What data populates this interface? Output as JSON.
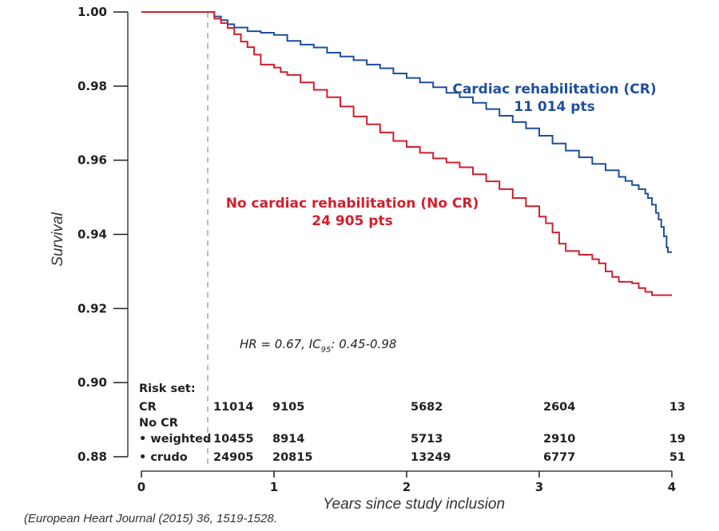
{
  "chart_data": {
    "type": "line",
    "subtype": "kaplan-meier-step",
    "title": "",
    "xlabel": "Years since study inclusion",
    "ylabel": "Survival",
    "xlim": [
      0,
      4
    ],
    "ylim": [
      0.88,
      1.0
    ],
    "x_ticks": [
      "0",
      "1",
      "2",
      "3",
      "4"
    ],
    "y_ticks": [
      "1.00",
      "0.98",
      "0.96",
      "0.94",
      "0.92",
      "0.90",
      "0.88"
    ],
    "grid": false,
    "reference_line": {
      "x": 0.5,
      "style": "dashed"
    },
    "series": [
      {
        "name": "Cardiac rehabilitation (CR)",
        "label_line1": "Cardiac rehabilitation (CR)",
        "label_line2": "11 014 pts",
        "color": "#1f4e9c",
        "points": [
          [
            0,
            1.0
          ],
          [
            0.5,
            1.0
          ],
          [
            0.55,
            0.9988
          ],
          [
            0.6,
            0.9978
          ],
          [
            0.65,
            0.9967
          ],
          [
            0.7,
            0.9958
          ],
          [
            0.8,
            0.9948
          ],
          [
            0.9,
            0.9944
          ],
          [
            1.0,
            0.9938
          ],
          [
            1.1,
            0.9922
          ],
          [
            1.2,
            0.9912
          ],
          [
            1.3,
            0.9904
          ],
          [
            1.4,
            0.989
          ],
          [
            1.5,
            0.988
          ],
          [
            1.6,
            0.987
          ],
          [
            1.7,
            0.9858
          ],
          [
            1.8,
            0.9848
          ],
          [
            1.9,
            0.9834
          ],
          [
            2.0,
            0.9822
          ],
          [
            2.1,
            0.981
          ],
          [
            2.2,
            0.9797
          ],
          [
            2.3,
            0.9782
          ],
          [
            2.4,
            0.977
          ],
          [
            2.5,
            0.9755
          ],
          [
            2.6,
            0.9738
          ],
          [
            2.7,
            0.972
          ],
          [
            2.8,
            0.9703
          ],
          [
            2.9,
            0.9686
          ],
          [
            3.0,
            0.9666
          ],
          [
            3.1,
            0.9645
          ],
          [
            3.2,
            0.9626
          ],
          [
            3.3,
            0.9608
          ],
          [
            3.4,
            0.959
          ],
          [
            3.5,
            0.9573
          ],
          [
            3.6,
            0.9555
          ],
          [
            3.65,
            0.9544
          ],
          [
            3.7,
            0.9533
          ],
          [
            3.75,
            0.9522
          ],
          [
            3.8,
            0.951
          ],
          [
            3.82,
            0.9498
          ],
          [
            3.85,
            0.948
          ],
          [
            3.88,
            0.9458
          ],
          [
            3.9,
            0.944
          ],
          [
            3.92,
            0.942
          ],
          [
            3.94,
            0.9395
          ],
          [
            3.96,
            0.9365
          ],
          [
            3.97,
            0.9352
          ],
          [
            4.0,
            0.9352
          ]
        ]
      },
      {
        "name": "No cardiac rehabilitation (No CR)",
        "label_line1": "No cardiac rehabilitation (No CR)",
        "label_line2": "24 905 pts",
        "color": "#d0202e",
        "points": [
          [
            0,
            1.0
          ],
          [
            0.5,
            1.0
          ],
          [
            0.55,
            0.9982
          ],
          [
            0.6,
            0.997
          ],
          [
            0.65,
            0.9957
          ],
          [
            0.7,
            0.994
          ],
          [
            0.75,
            0.992
          ],
          [
            0.8,
            0.9905
          ],
          [
            0.85,
            0.9885
          ],
          [
            0.9,
            0.9858
          ],
          [
            1.0,
            0.985
          ],
          [
            1.05,
            0.9838
          ],
          [
            1.1,
            0.983
          ],
          [
            1.2,
            0.981
          ],
          [
            1.3,
            0.979
          ],
          [
            1.4,
            0.977
          ],
          [
            1.5,
            0.9745
          ],
          [
            1.6,
            0.9718
          ],
          [
            1.7,
            0.9697
          ],
          [
            1.8,
            0.9675
          ],
          [
            1.9,
            0.9652
          ],
          [
            2.0,
            0.9636
          ],
          [
            2.1,
            0.962
          ],
          [
            2.2,
            0.9605
          ],
          [
            2.3,
            0.9594
          ],
          [
            2.4,
            0.9581
          ],
          [
            2.5,
            0.9562
          ],
          [
            2.6,
            0.9543
          ],
          [
            2.7,
            0.9522
          ],
          [
            2.8,
            0.9498
          ],
          [
            2.9,
            0.9476
          ],
          [
            3.0,
            0.9448
          ],
          [
            3.05,
            0.943
          ],
          [
            3.1,
            0.9405
          ],
          [
            3.15,
            0.9375
          ],
          [
            3.2,
            0.9355
          ],
          [
            3.3,
            0.9345
          ],
          [
            3.4,
            0.9333
          ],
          [
            3.45,
            0.9322
          ],
          [
            3.5,
            0.93
          ],
          [
            3.55,
            0.9285
          ],
          [
            3.6,
            0.9272
          ],
          [
            3.7,
            0.9268
          ],
          [
            3.75,
            0.9255
          ],
          [
            3.8,
            0.9245
          ],
          [
            3.85,
            0.9236
          ],
          [
            4.0,
            0.9236
          ]
        ]
      }
    ],
    "annotation": {
      "prefix": "HR = 0.67, IC",
      "subscript": "95",
      "suffix": ": 0.45-0.98"
    },
    "risk_table": {
      "title": "Risk set:",
      "timepoints": [
        0.5,
        1,
        2,
        3,
        4
      ],
      "rows": [
        {
          "label": "CR",
          "values": [
            "11014",
            "9105",
            "5682",
            "2604",
            "13"
          ]
        },
        {
          "label": "No CR",
          "values": []
        },
        {
          "label": "• weighted",
          "values": [
            "10455",
            "8914",
            "5713",
            "2910",
            "19"
          ]
        },
        {
          "label": "• crudo",
          "values": [
            "24905",
            "20815",
            "13249",
            "6777",
            "51"
          ]
        }
      ]
    }
  },
  "citation": "(European Heart Journal (2015) 36, 1519-1528."
}
